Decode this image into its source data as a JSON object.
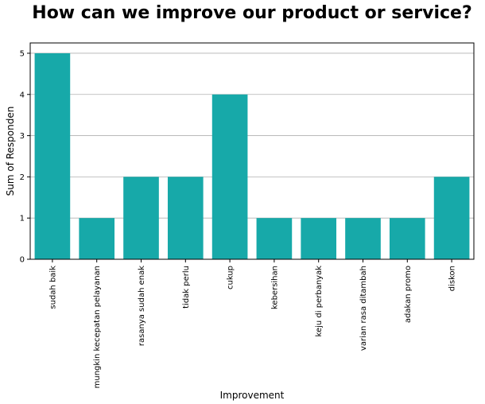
{
  "chart_data": {
    "type": "bar",
    "title": "How can we improve our product or service?",
    "xlabel": "Improvement",
    "ylabel": "Sum of Responden",
    "ylim": [
      0,
      5.25
    ],
    "yticks": [
      0,
      1,
      2,
      3,
      4,
      5
    ],
    "grid": "horizontal",
    "bar_color": "#17a9a9",
    "categories": [
      "sudah baik",
      "mungkin kecepatan pelayanan",
      "rasanya sudah enak",
      "tidak perlu",
      "cukup",
      "kebersihan",
      "keju di perbanyak",
      "varian rasa ditambah",
      "adakan promo",
      "diskon"
    ],
    "values": [
      5,
      1,
      2,
      2,
      4,
      1,
      1,
      1,
      1,
      2
    ]
  }
}
